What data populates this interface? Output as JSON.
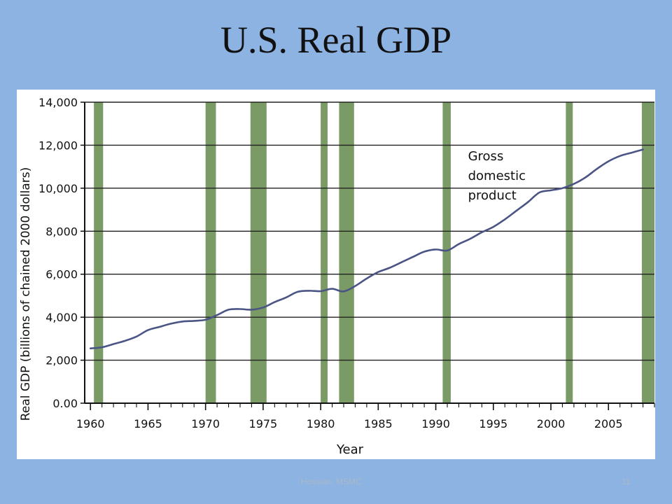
{
  "slide": {
    "title": "U.S. Real GDP",
    "footer": "Hossain: MSMC",
    "page_number": "11"
  },
  "colors": {
    "background": "#8db3e2",
    "recession_band": "#7a9a66",
    "line": "#4b5585",
    "grid": "#222222"
  },
  "chart_data": {
    "type": "line",
    "title": "",
    "xlabel": "Year",
    "ylabel": "Real GDP (billions of chained 2000 dollars)",
    "xlim": [
      1959.5,
      2009
    ],
    "ylim": [
      0,
      14000
    ],
    "grid": "horizontal",
    "x_ticks": [
      1960,
      1965,
      1970,
      1975,
      1980,
      1985,
      1990,
      1995,
      2000,
      2005
    ],
    "x_tick_labels": [
      "1960",
      "1965",
      "1970",
      "1975",
      "1980",
      "1985",
      "1990",
      "1995",
      "2000",
      "2005"
    ],
    "y_ticks": [
      0,
      2000,
      4000,
      6000,
      8000,
      10000,
      12000,
      14000
    ],
    "y_tick_labels": [
      "0.00",
      "2,000",
      "4,000",
      "6,000",
      "8,000",
      "10,000",
      "12,000",
      "14,000"
    ],
    "annotation": {
      "lines": [
        "Gross",
        "domestic",
        "product"
      ],
      "x": 1992.8,
      "y": 11300
    },
    "recessions": [
      [
        1960.3,
        1961.1
      ],
      [
        1970.0,
        1970.9
      ],
      [
        1973.9,
        1975.3
      ],
      [
        1980.0,
        1980.6
      ],
      [
        1981.6,
        1982.9
      ],
      [
        1990.6,
        1991.3
      ],
      [
        2001.3,
        2001.9
      ],
      [
        2007.9,
        2009.0
      ]
    ],
    "series": [
      {
        "name": "Gross domestic product",
        "x": [
          1960,
          1961,
          1962,
          1963,
          1964,
          1965,
          1966,
          1967,
          1968,
          1969,
          1970,
          1971,
          1972,
          1973,
          1974,
          1975,
          1976,
          1977,
          1978,
          1979,
          1980,
          1981,
          1982,
          1983,
          1984,
          1985,
          1986,
          1987,
          1988,
          1989,
          1990,
          1991,
          1992,
          1993,
          1994,
          1995,
          1996,
          1997,
          1998,
          1999,
          2000,
          2001,
          2002,
          2003,
          2004,
          2005,
          2006,
          2007,
          2008
        ],
        "values": [
          2550,
          2600,
          2750,
          2900,
          3100,
          3400,
          3550,
          3700,
          3800,
          3830,
          3880,
          4100,
          4350,
          4380,
          4350,
          4450,
          4700,
          4920,
          5180,
          5230,
          5210,
          5320,
          5200,
          5450,
          5800,
          6100,
          6300,
          6550,
          6800,
          7050,
          7150,
          7100,
          7400,
          7650,
          7950,
          8200,
          8550,
          8950,
          9350,
          9800,
          9900,
          10000,
          10200,
          10500,
          10900,
          11250,
          11500,
          11650,
          11800
        ]
      }
    ]
  }
}
